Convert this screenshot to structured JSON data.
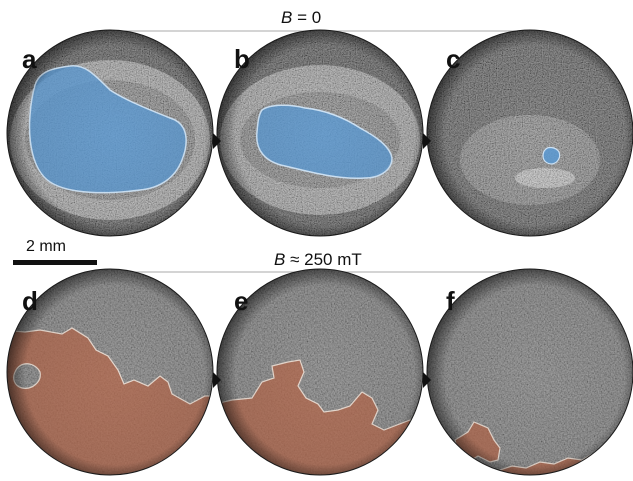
{
  "figure": {
    "panels": [
      {
        "id": "a",
        "label": "a",
        "row": "top",
        "region_color": "#5b9bd6"
      },
      {
        "id": "b",
        "label": "b",
        "row": "top",
        "region_color": "#5b9bd6"
      },
      {
        "id": "c",
        "label": "c",
        "row": "top",
        "region_color": "#5b9bd6"
      },
      {
        "id": "d",
        "label": "d",
        "row": "bottom",
        "region_color": "#b5674a"
      },
      {
        "id": "e",
        "label": "e",
        "row": "bottom",
        "region_color": "#b5674a"
      },
      {
        "id": "f",
        "label": "f",
        "row": "bottom",
        "region_color": "#b5674a"
      }
    ],
    "top_header": {
      "var": "B",
      "rest": " = 0"
    },
    "bottom_header": {
      "var": "B",
      "rest": " ≈ 250 mT"
    },
    "scale_bar": {
      "label": "2 mm"
    },
    "arrow_icon": "triangle-right-icon"
  }
}
